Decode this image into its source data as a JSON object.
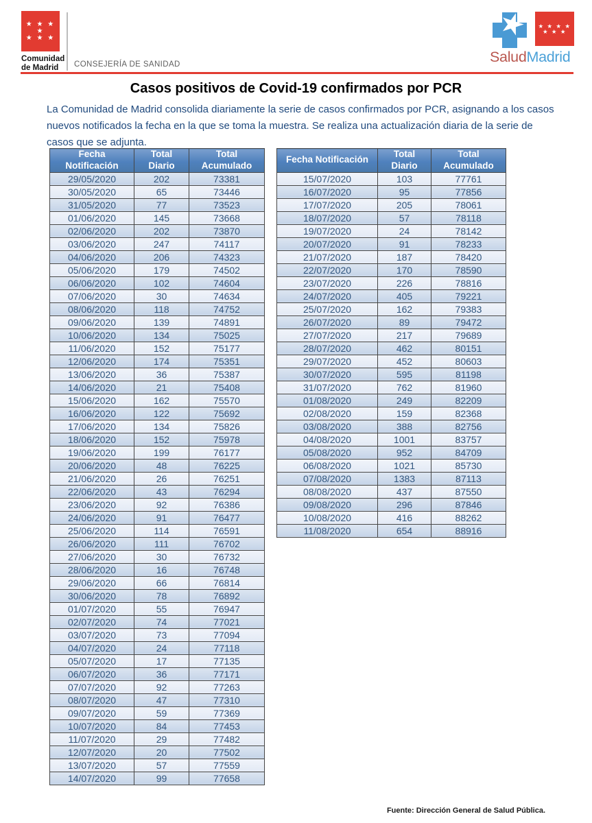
{
  "brand": {
    "comunidad_name": "Comunidad\nde Madrid",
    "department": "CONSEJERÍA DE SANIDAD",
    "flag_stars_row1": "★ ★ ★ ★",
    "flag_stars_row2": "★ ★ ★",
    "star_glyph": "★",
    "salud": "Salud",
    "madrid": "Madrid"
  },
  "title": "Casos positivos de Covid-19 confirmados por PCR",
  "intro": "La Comunidad de Madrid consolida diariamente la serie de casos confirmados por PCR, asignando a los casos nuevos notificados la fecha en la que se toma la muestra. Se realiza una actualización diaria de la serie de casos que se adjunta.",
  "source": "Fuente: Dirección General de Salud Pública.",
  "colors": {
    "accent_red": "#e23b31",
    "table_header_blue": "#4f81bd",
    "body_text_blue": "#1f497d",
    "cell_text_blue": "#31567f",
    "logo_blue": "#4a9ad4",
    "salud_red": "#b9574f"
  },
  "tables": {
    "left": {
      "headers": [
        "Fecha\nNotificación",
        "Total\nDiario",
        "Total\nAcumulado"
      ],
      "rows": [
        [
          "29/05/2020",
          "202",
          "73381"
        ],
        [
          "30/05/2020",
          "65",
          "73446"
        ],
        [
          "31/05/2020",
          "77",
          "73523"
        ],
        [
          "01/06/2020",
          "145",
          "73668"
        ],
        [
          "02/06/2020",
          "202",
          "73870"
        ],
        [
          "03/06/2020",
          "247",
          "74117"
        ],
        [
          "04/06/2020",
          "206",
          "74323"
        ],
        [
          "05/06/2020",
          "179",
          "74502"
        ],
        [
          "06/06/2020",
          "102",
          "74604"
        ],
        [
          "07/06/2020",
          "30",
          "74634"
        ],
        [
          "08/06/2020",
          "118",
          "74752"
        ],
        [
          "09/06/2020",
          "139",
          "74891"
        ],
        [
          "10/06/2020",
          "134",
          "75025"
        ],
        [
          "11/06/2020",
          "152",
          "75177"
        ],
        [
          "12/06/2020",
          "174",
          "75351"
        ],
        [
          "13/06/2020",
          "36",
          "75387"
        ],
        [
          "14/06/2020",
          "21",
          "75408"
        ],
        [
          "15/06/2020",
          "162",
          "75570"
        ],
        [
          "16/06/2020",
          "122",
          "75692"
        ],
        [
          "17/06/2020",
          "134",
          "75826"
        ],
        [
          "18/06/2020",
          "152",
          "75978"
        ],
        [
          "19/06/2020",
          "199",
          "76177"
        ],
        [
          "20/06/2020",
          "48",
          "76225"
        ],
        [
          "21/06/2020",
          "26",
          "76251"
        ],
        [
          "22/06/2020",
          "43",
          "76294"
        ],
        [
          "23/06/2020",
          "92",
          "76386"
        ],
        [
          "24/06/2020",
          "91",
          "76477"
        ],
        [
          "25/06/2020",
          "114",
          "76591"
        ],
        [
          "26/06/2020",
          "111",
          "76702"
        ],
        [
          "27/06/2020",
          "30",
          "76732"
        ],
        [
          "28/06/2020",
          "16",
          "76748"
        ],
        [
          "29/06/2020",
          "66",
          "76814"
        ],
        [
          "30/06/2020",
          "78",
          "76892"
        ],
        [
          "01/07/2020",
          "55",
          "76947"
        ],
        [
          "02/07/2020",
          "74",
          "77021"
        ],
        [
          "03/07/2020",
          "73",
          "77094"
        ],
        [
          "04/07/2020",
          "24",
          "77118"
        ],
        [
          "05/07/2020",
          "17",
          "77135"
        ],
        [
          "06/07/2020",
          "36",
          "77171"
        ],
        [
          "07/07/2020",
          "92",
          "77263"
        ],
        [
          "08/07/2020",
          "47",
          "77310"
        ],
        [
          "09/07/2020",
          "59",
          "77369"
        ],
        [
          "10/07/2020",
          "84",
          "77453"
        ],
        [
          "11/07/2020",
          "29",
          "77482"
        ],
        [
          "12/07/2020",
          "20",
          "77502"
        ],
        [
          "13/07/2020",
          "57",
          "77559"
        ],
        [
          "14/07/2020",
          "99",
          "77658"
        ]
      ]
    },
    "right": {
      "headers": [
        "Fecha Notificación",
        "Total\nDiario",
        "Total\nAcumulado"
      ],
      "rows": [
        [
          "15/07/2020",
          "103",
          "77761"
        ],
        [
          "16/07/2020",
          "95",
          "77856"
        ],
        [
          "17/07/2020",
          "205",
          "78061"
        ],
        [
          "18/07/2020",
          "57",
          "78118"
        ],
        [
          "19/07/2020",
          "24",
          "78142"
        ],
        [
          "20/07/2020",
          "91",
          "78233"
        ],
        [
          "21/07/2020",
          "187",
          "78420"
        ],
        [
          "22/07/2020",
          "170",
          "78590"
        ],
        [
          "23/07/2020",
          "226",
          "78816"
        ],
        [
          "24/07/2020",
          "405",
          "79221"
        ],
        [
          "25/07/2020",
          "162",
          "79383"
        ],
        [
          "26/07/2020",
          "89",
          "79472"
        ],
        [
          "27/07/2020",
          "217",
          "79689"
        ],
        [
          "28/07/2020",
          "462",
          "80151"
        ],
        [
          "29/07/2020",
          "452",
          "80603"
        ],
        [
          "30/07/2020",
          "595",
          "81198"
        ],
        [
          "31/07/2020",
          "762",
          "81960"
        ],
        [
          "01/08/2020",
          "249",
          "82209"
        ],
        [
          "02/08/2020",
          "159",
          "82368"
        ],
        [
          "03/08/2020",
          "388",
          "82756"
        ],
        [
          "04/08/2020",
          "1001",
          "83757"
        ],
        [
          "05/08/2020",
          "952",
          "84709"
        ],
        [
          "06/08/2020",
          "1021",
          "85730"
        ],
        [
          "07/08/2020",
          "1383",
          "87113"
        ],
        [
          "08/08/2020",
          "437",
          "87550"
        ],
        [
          "09/08/2020",
          "296",
          "87846"
        ],
        [
          "10/08/2020",
          "416",
          "88262"
        ],
        [
          "11/08/2020",
          "654",
          "88916"
        ]
      ]
    }
  }
}
